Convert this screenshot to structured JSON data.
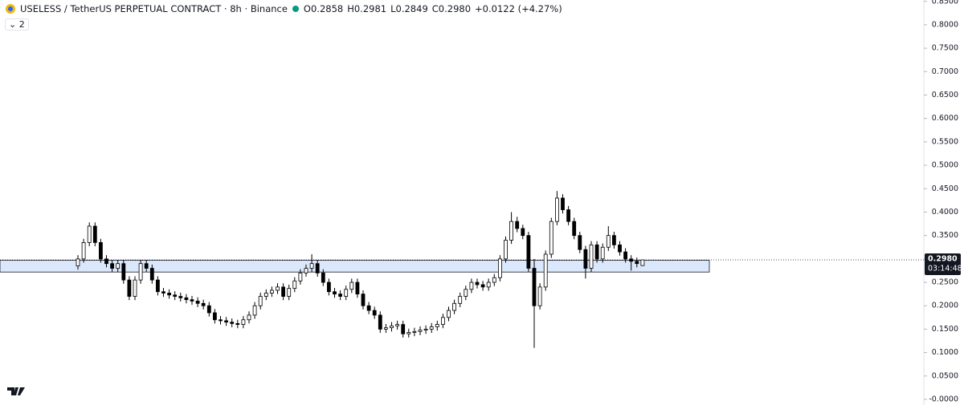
{
  "chart_data": {
    "type": "candlestick",
    "title": "USELESS / TetherUS PERPETUAL CONTRACT · 8h · Binance",
    "ohlc_header": [
      "O0.2858",
      "H0.2981",
      "L0.2849",
      "C0.2980",
      "+0.0122 (+4.27%)"
    ],
    "indicators": "2",
    "up_color": "#ffffff",
    "down_color": "#000000",
    "edge_color": "#000000",
    "ylim": [
      -0.012,
      0.853
    ],
    "yticks": [
      {
        "value": 0.85,
        "label": "0.8500"
      },
      {
        "value": 0.8,
        "label": "0.8000"
      },
      {
        "value": 0.75,
        "label": "0.7500"
      },
      {
        "value": 0.7,
        "label": "0.7000"
      },
      {
        "value": 0.65,
        "label": "0.6500"
      },
      {
        "value": 0.6,
        "label": "0.6000"
      },
      {
        "value": 0.55,
        "label": "0.5500"
      },
      {
        "value": 0.5,
        "label": "0.5000"
      },
      {
        "value": 0.45,
        "label": "0.4500"
      },
      {
        "value": 0.4,
        "label": "0.4000"
      },
      {
        "value": 0.35,
        "label": "0.3500"
      },
      {
        "value": 0.3,
        "label": "0.3000"
      },
      {
        "value": 0.25,
        "label": "0.2500"
      },
      {
        "value": 0.2,
        "label": "0.2000"
      },
      {
        "value": 0.15,
        "label": "0.1500"
      },
      {
        "value": 0.1,
        "label": "0.1000"
      },
      {
        "value": 0.05,
        "label": "0.0500"
      },
      {
        "value": 0,
        "label": "-0.0000"
      }
    ],
    "last_price": {
      "value": 0.298,
      "label": "0.2980"
    },
    "countdown": "03:14:48",
    "zone": {
      "low": 0.272,
      "high": 0.297,
      "color": "#dbe8fb"
    },
    "open": [
      0.285,
      0.3,
      0.335,
      0.37,
      0.335,
      0.3,
      0.29,
      0.28,
      0.29,
      0.255,
      0.22,
      0.255,
      0.29,
      0.28,
      0.255,
      0.23,
      0.227,
      0.223,
      0.22,
      0.217,
      0.213,
      0.21,
      0.205,
      0.2,
      0.185,
      0.17,
      0.168,
      0.165,
      0.162,
      0.16,
      0.17,
      0.18,
      0.2,
      0.22,
      0.227,
      0.233,
      0.24,
      0.22,
      0.237,
      0.253,
      0.27,
      0.28,
      0.29,
      0.27,
      0.25,
      0.23,
      0.225,
      0.22,
      0.235,
      0.25,
      0.225,
      0.2,
      0.19,
      0.18,
      0.15,
      0.153,
      0.157,
      0.16,
      0.14,
      0.143,
      0.145,
      0.148,
      0.15,
      0.155,
      0.16,
      0.175,
      0.19,
      0.205,
      0.22,
      0.235,
      0.25,
      0.245,
      0.24,
      0.25,
      0.26,
      0.3,
      0.34,
      0.38,
      0.365,
      0.35,
      0.28,
      0.2,
      0.24,
      0.31,
      0.38,
      0.43,
      0.405,
      0.38,
      0.35,
      0.32,
      0.28,
      0.33,
      0.3,
      0.325,
      0.35,
      0.33,
      0.315,
      0.3,
      0.295,
      0.2858
    ],
    "high": [
      0.308,
      0.343,
      0.378,
      0.378,
      0.343,
      0.308,
      0.298,
      0.298,
      0.298,
      0.263,
      0.263,
      0.298,
      0.298,
      0.288,
      0.263,
      0.238,
      0.235,
      0.231,
      0.228,
      0.225,
      0.221,
      0.218,
      0.213,
      0.208,
      0.193,
      0.178,
      0.176,
      0.173,
      0.17,
      0.178,
      0.188,
      0.208,
      0.228,
      0.235,
      0.241,
      0.248,
      0.248,
      0.245,
      0.261,
      0.278,
      0.288,
      0.31,
      0.298,
      0.278,
      0.258,
      0.238,
      0.233,
      0.243,
      0.258,
      0.258,
      0.233,
      0.208,
      0.198,
      0.188,
      0.161,
      0.165,
      0.168,
      0.168,
      0.151,
      0.153,
      0.156,
      0.158,
      0.163,
      0.168,
      0.183,
      0.198,
      0.213,
      0.228,
      0.243,
      0.258,
      0.258,
      0.253,
      0.258,
      0.268,
      0.308,
      0.348,
      0.4,
      0.39,
      0.373,
      0.358,
      0.3,
      0.248,
      0.318,
      0.388,
      0.445,
      0.438,
      0.413,
      0.388,
      0.358,
      0.328,
      0.338,
      0.338,
      0.333,
      0.37,
      0.358,
      0.338,
      0.323,
      0.308,
      0.303,
      0.2981
    ],
    "low": [
      0.277,
      0.292,
      0.327,
      0.327,
      0.292,
      0.282,
      0.272,
      0.272,
      0.247,
      0.212,
      0.212,
      0.247,
      0.272,
      0.247,
      0.222,
      0.219,
      0.215,
      0.212,
      0.209,
      0.205,
      0.202,
      0.197,
      0.192,
      0.177,
      0.162,
      0.16,
      0.157,
      0.154,
      0.152,
      0.152,
      0.162,
      0.172,
      0.192,
      0.212,
      0.219,
      0.225,
      0.212,
      0.212,
      0.229,
      0.245,
      0.262,
      0.272,
      0.262,
      0.242,
      0.222,
      0.217,
      0.212,
      0.212,
      0.227,
      0.217,
      0.192,
      0.182,
      0.172,
      0.142,
      0.142,
      0.145,
      0.149,
      0.132,
      0.132,
      0.135,
      0.137,
      0.14,
      0.142,
      0.147,
      0.152,
      0.167,
      0.182,
      0.197,
      0.212,
      0.227,
      0.237,
      0.232,
      0.232,
      0.242,
      0.252,
      0.292,
      0.332,
      0.357,
      0.342,
      0.272,
      0.11,
      0.192,
      0.232,
      0.302,
      0.372,
      0.397,
      0.372,
      0.342,
      0.312,
      0.258,
      0.272,
      0.292,
      0.292,
      0.317,
      0.322,
      0.307,
      0.292,
      0.275,
      0.282,
      0.2849
    ],
    "close": [
      0.3,
      0.335,
      0.37,
      0.335,
      0.3,
      0.29,
      0.28,
      0.29,
      0.255,
      0.22,
      0.255,
      0.29,
      0.28,
      0.255,
      0.23,
      0.227,
      0.223,
      0.22,
      0.217,
      0.213,
      0.21,
      0.205,
      0.2,
      0.185,
      0.17,
      0.168,
      0.165,
      0.162,
      0.16,
      0.17,
      0.18,
      0.2,
      0.22,
      0.227,
      0.233,
      0.24,
      0.22,
      0.237,
      0.253,
      0.27,
      0.28,
      0.29,
      0.27,
      0.25,
      0.23,
      0.225,
      0.22,
      0.235,
      0.25,
      0.225,
      0.2,
      0.19,
      0.18,
      0.15,
      0.153,
      0.157,
      0.16,
      0.14,
      0.143,
      0.145,
      0.148,
      0.15,
      0.155,
      0.16,
      0.175,
      0.19,
      0.205,
      0.22,
      0.235,
      0.25,
      0.245,
      0.24,
      0.25,
      0.26,
      0.3,
      0.34,
      0.38,
      0.365,
      0.35,
      0.28,
      0.2,
      0.24,
      0.31,
      0.38,
      0.43,
      0.405,
      0.38,
      0.35,
      0.32,
      0.28,
      0.33,
      0.3,
      0.325,
      0.35,
      0.33,
      0.315,
      0.3,
      0.295,
      0.29,
      0.298
    ]
  }
}
